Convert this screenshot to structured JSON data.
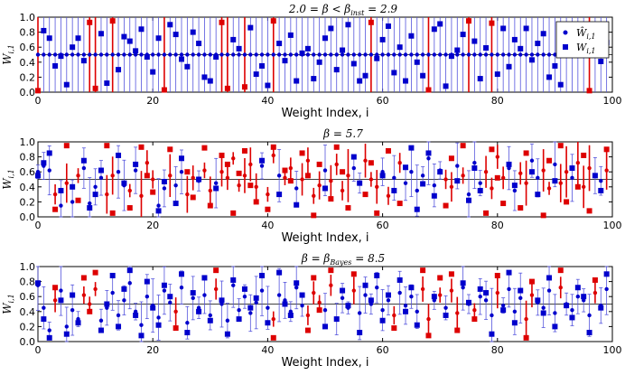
{
  "chart_data": [
    {
      "type": "scatter",
      "title": "2.0 = β < β_inst = 2.9",
      "xlabel": "Weight Index, i",
      "ylabel": "W_i,1",
      "xlim": [
        0,
        100
      ],
      "ylim": [
        0,
        1
      ],
      "xticks": [
        "0",
        "20",
        "40",
        "60",
        "80",
        "100"
      ],
      "yticks": [
        "0.0",
        "0.2",
        "0.4",
        "0.6",
        "0.8",
        "1.0"
      ],
      "legend": {
        "position": "top-right",
        "entries": [
          "Ŵ_i,1",
          "W_i,1"
        ]
      },
      "series": [
        {
          "name": "Ŵ_i,1 (estimate)",
          "marker": "circle",
          "color": "#0000cc",
          "values": "0.5 for all i = 0..99, error bars spanning 0.0 to 1.0"
        },
        {
          "name": "W_i,1 (true)",
          "marker": "square",
          "colors": {
            "blue": "#0000cc",
            "red": "#dd0000"
          },
          "values": [
            0.02,
            0.82,
            0.72,
            0.35,
            0.48,
            0.1,
            0.6,
            0.72,
            0.42,
            0.93,
            0.05,
            0.78,
            0.12,
            0.95,
            0.3,
            0.74,
            0.68,
            0.55,
            0.84,
            0.47,
            0.27,
            0.72,
            0.03,
            0.9,
            0.77,
            0.44,
            0.34,
            0.8,
            0.65,
            0.2,
            0.15,
            0.47,
            0.93,
            0.05,
            0.7,
            0.58,
            0.07,
            0.86,
            0.24,
            0.35,
            0.09,
            0.95,
            0.65,
            0.42,
            0.76,
            0.15,
            0.52,
            0.58,
            0.18,
            0.4,
            0.72,
            0.85,
            0.3,
            0.56,
            0.9,
            0.38,
            0.15,
            0.22,
            0.93,
            0.45,
            0.7,
            0.88,
            0.26,
            0.6,
            0.15,
            0.75,
            0.4,
            0.22,
            0.03,
            0.84,
            0.91,
            0.08,
            0.48,
            0.56,
            0.77,
            0.95,
            0.68,
            0.18,
            0.59,
            0.92,
            0.24,
            0.85,
            0.34,
            0.7,
            0.58,
            0.85,
            0.43,
            0.65,
            0.78,
            0.2,
            0.35,
            0.1,
            0.62,
            0.87,
            0.75,
            0.53,
            0.02,
            0.73,
            0.41,
            0.66
          ]
        }
      ]
    },
    {
      "type": "scatter",
      "title": "β = 5.7",
      "xlabel": "Weight Index, i",
      "ylabel": "W_i,1",
      "xlim": [
        0,
        100
      ],
      "ylim": [
        0,
        1
      ],
      "xticks": [
        "0",
        "20",
        "40",
        "60",
        "80",
        "100"
      ],
      "yticks": [
        "0.0",
        "0.2",
        "0.4",
        "0.6",
        "0.8",
        "1.0"
      ],
      "series": [
        {
          "name": "Ŵ_i,1 (estimate)",
          "marker": "circle",
          "values": [
            0.6,
            0.68,
            0.62,
            0.3,
            0.15,
            0.45,
            0.2,
            0.55,
            0.65,
            0.18,
            0.4,
            0.52,
            0.3,
            0.55,
            0.6,
            0.42,
            0.35,
            0.62,
            0.28,
            0.72,
            0.5,
            0.15,
            0.38,
            0.55,
            0.42,
            0.6,
            0.3,
            0.52,
            0.48,
            0.62,
            0.35,
            0.45,
            0.6,
            0.52,
            0.78,
            0.42,
            0.55,
            0.7,
            0.4,
            0.68,
            0.3,
            0.82,
            0.55,
            0.52,
            0.65,
            0.38,
            0.5,
            0.75,
            0.28,
            0.42,
            0.62,
            0.48,
            0.7,
            0.35,
            0.55,
            0.65,
            0.45,
            0.75,
            0.5,
            0.4,
            0.6,
            0.28,
            0.52,
            0.72,
            0.45,
            0.6,
            0.35,
            0.55,
            0.78,
            0.42,
            0.62,
            0.5,
            0.4,
            0.68,
            0.55,
            0.3,
            0.72,
            0.45,
            0.6,
            0.38,
            0.8,
            0.52,
            0.65,
            0.35,
            0.58,
            0.45,
            0.75,
            0.52,
            0.62,
            0.38,
            0.7,
            0.45,
            0.6,
            0.52,
            0.72,
            0.4,
            0.65,
            0.55,
            0.48,
            0.62
          ]
        },
        {
          "name": "W_i,1 (true)",
          "marker": "square",
          "values": [
            0.55,
            0.72,
            0.85,
            0.1,
            0.35,
            0.95,
            0.4,
            0.22,
            0.75,
            0.12,
            0.3,
            0.62,
            0.95,
            0.05,
            0.82,
            0.45,
            0.12,
            0.7,
            0.93,
            0.55,
            0.33,
            0.08,
            0.47,
            0.9,
            0.18,
            0.78,
            0.6,
            0.26,
            0.5,
            0.92,
            0.15,
            0.38,
            0.82,
            0.7,
            0.05,
            0.58,
            0.88,
            0.42,
            0.2,
            0.75,
            0.1,
            0.93,
            0.3,
            0.62,
            0.48,
            0.16,
            0.85,
            0.55,
            0.02,
            0.7,
            0.38,
            0.24,
            0.93,
            0.6,
            0.12,
            0.8,
            0.45,
            0.3,
            0.72,
            0.05,
            0.55,
            0.88,
            0.35,
            0.18,
            0.66,
            0.92,
            0.1,
            0.44,
            0.85,
            0.28,
            0.6,
            0.15,
            0.78,
            0.48,
            0.95,
            0.22,
            0.65,
            0.35,
            0.05,
            0.9,
            0.52,
            0.18,
            0.7,
            0.42,
            0.12,
            0.85,
            0.6,
            0.3,
            0.02,
            0.75,
            0.48,
            0.95,
            0.2,
            0.65,
            0.4,
            0.82,
            0.08,
            0.55,
            0.35,
            0.9
          ]
        }
      ]
    },
    {
      "type": "scatter",
      "title": "β = β_Bayes = 8.5",
      "xlabel": "Weight Index, i",
      "ylabel": "W_i,1",
      "xlim": [
        0,
        100
      ],
      "ylim": [
        0,
        1
      ],
      "xticks": [
        "0",
        "20",
        "40",
        "60",
        "80",
        "100"
      ],
      "yticks": [
        "0.0",
        "0.2",
        "0.4",
        "0.6",
        "0.8",
        "1.0"
      ],
      "series": [
        {
          "name": "Ŵ_i,1 (estimate)",
          "marker": "circle",
          "values": [
            0.75,
            0.45,
            0.15,
            0.55,
            0.68,
            0.2,
            0.42,
            0.3,
            0.62,
            0.5,
            0.7,
            0.28,
            0.45,
            0.65,
            0.35,
            0.55,
            0.78,
            0.4,
            0.22,
            0.6,
            0.48,
            0.32,
            0.68,
            0.52,
            0.4,
            0.72,
            0.25,
            0.58,
            0.45,
            0.62,
            0.35,
            0.7,
            0.5,
            0.28,
            0.75,
            0.42,
            0.6,
            0.38,
            0.52,
            0.68,
            0.45,
            0.3,
            0.62,
            0.55,
            0.4,
            0.72,
            0.48,
            0.35,
            0.65,
            0.52,
            0.42,
            0.75,
            0.3,
            0.58,
            0.45,
            0.68,
            0.38,
            0.62,
            0.5,
            0.72,
            0.42,
            0.55,
            0.35,
            0.65,
            0.48,
            0.6,
            0.4,
            0.7,
            0.3,
            0.55,
            0.62,
            0.45,
            0.68,
            0.38,
            0.72,
            0.5,
            0.42,
            0.6,
            0.55,
            0.35,
            0.65,
            0.48,
            0.7,
            0.4,
            0.58,
            0.3,
            0.62,
            0.52,
            0.45,
            0.68,
            0.38,
            0.72,
            0.5,
            0.42,
            0.6,
            0.55,
            0.35,
            0.65,
            0.48,
            0.7
          ]
        },
        {
          "name": "W_i,1 (true)",
          "marker": "square",
          "values": [
            0.78,
            0.3,
            0.05,
            0.72,
            0.55,
            0.1,
            0.62,
            0.25,
            0.85,
            0.4,
            0.92,
            0.15,
            0.5,
            0.88,
            0.2,
            0.7,
            0.95,
            0.35,
            0.08,
            0.8,
            0.45,
            0.22,
            0.75,
            0.6,
            0.18,
            0.9,
            0.12,
            0.65,
            0.4,
            0.85,
            0.28,
            0.95,
            0.55,
            0.1,
            0.82,
            0.3,
            0.7,
            0.45,
            0.58,
            0.88,
            0.25,
            0.05,
            0.92,
            0.5,
            0.35,
            0.78,
            0.62,
            0.15,
            0.85,
            0.42,
            0.2,
            0.95,
            0.3,
            0.68,
            0.48,
            0.9,
            0.12,
            0.75,
            0.55,
            0.88,
            0.28,
            0.62,
            0.18,
            0.82,
            0.4,
            0.72,
            0.22,
            0.95,
            0.08,
            0.6,
            0.85,
            0.35,
            0.9,
            0.15,
            0.78,
            0.52,
            0.3,
            0.7,
            0.65,
            0.1,
            0.88,
            0.42,
            0.92,
            0.25,
            0.68,
            0.05,
            0.8,
            0.55,
            0.38,
            0.85,
            0.2,
            0.95,
            0.48,
            0.32,
            0.72,
            0.6,
            0.12,
            0.82,
            0.45,
            0.9
          ]
        }
      ]
    }
  ]
}
